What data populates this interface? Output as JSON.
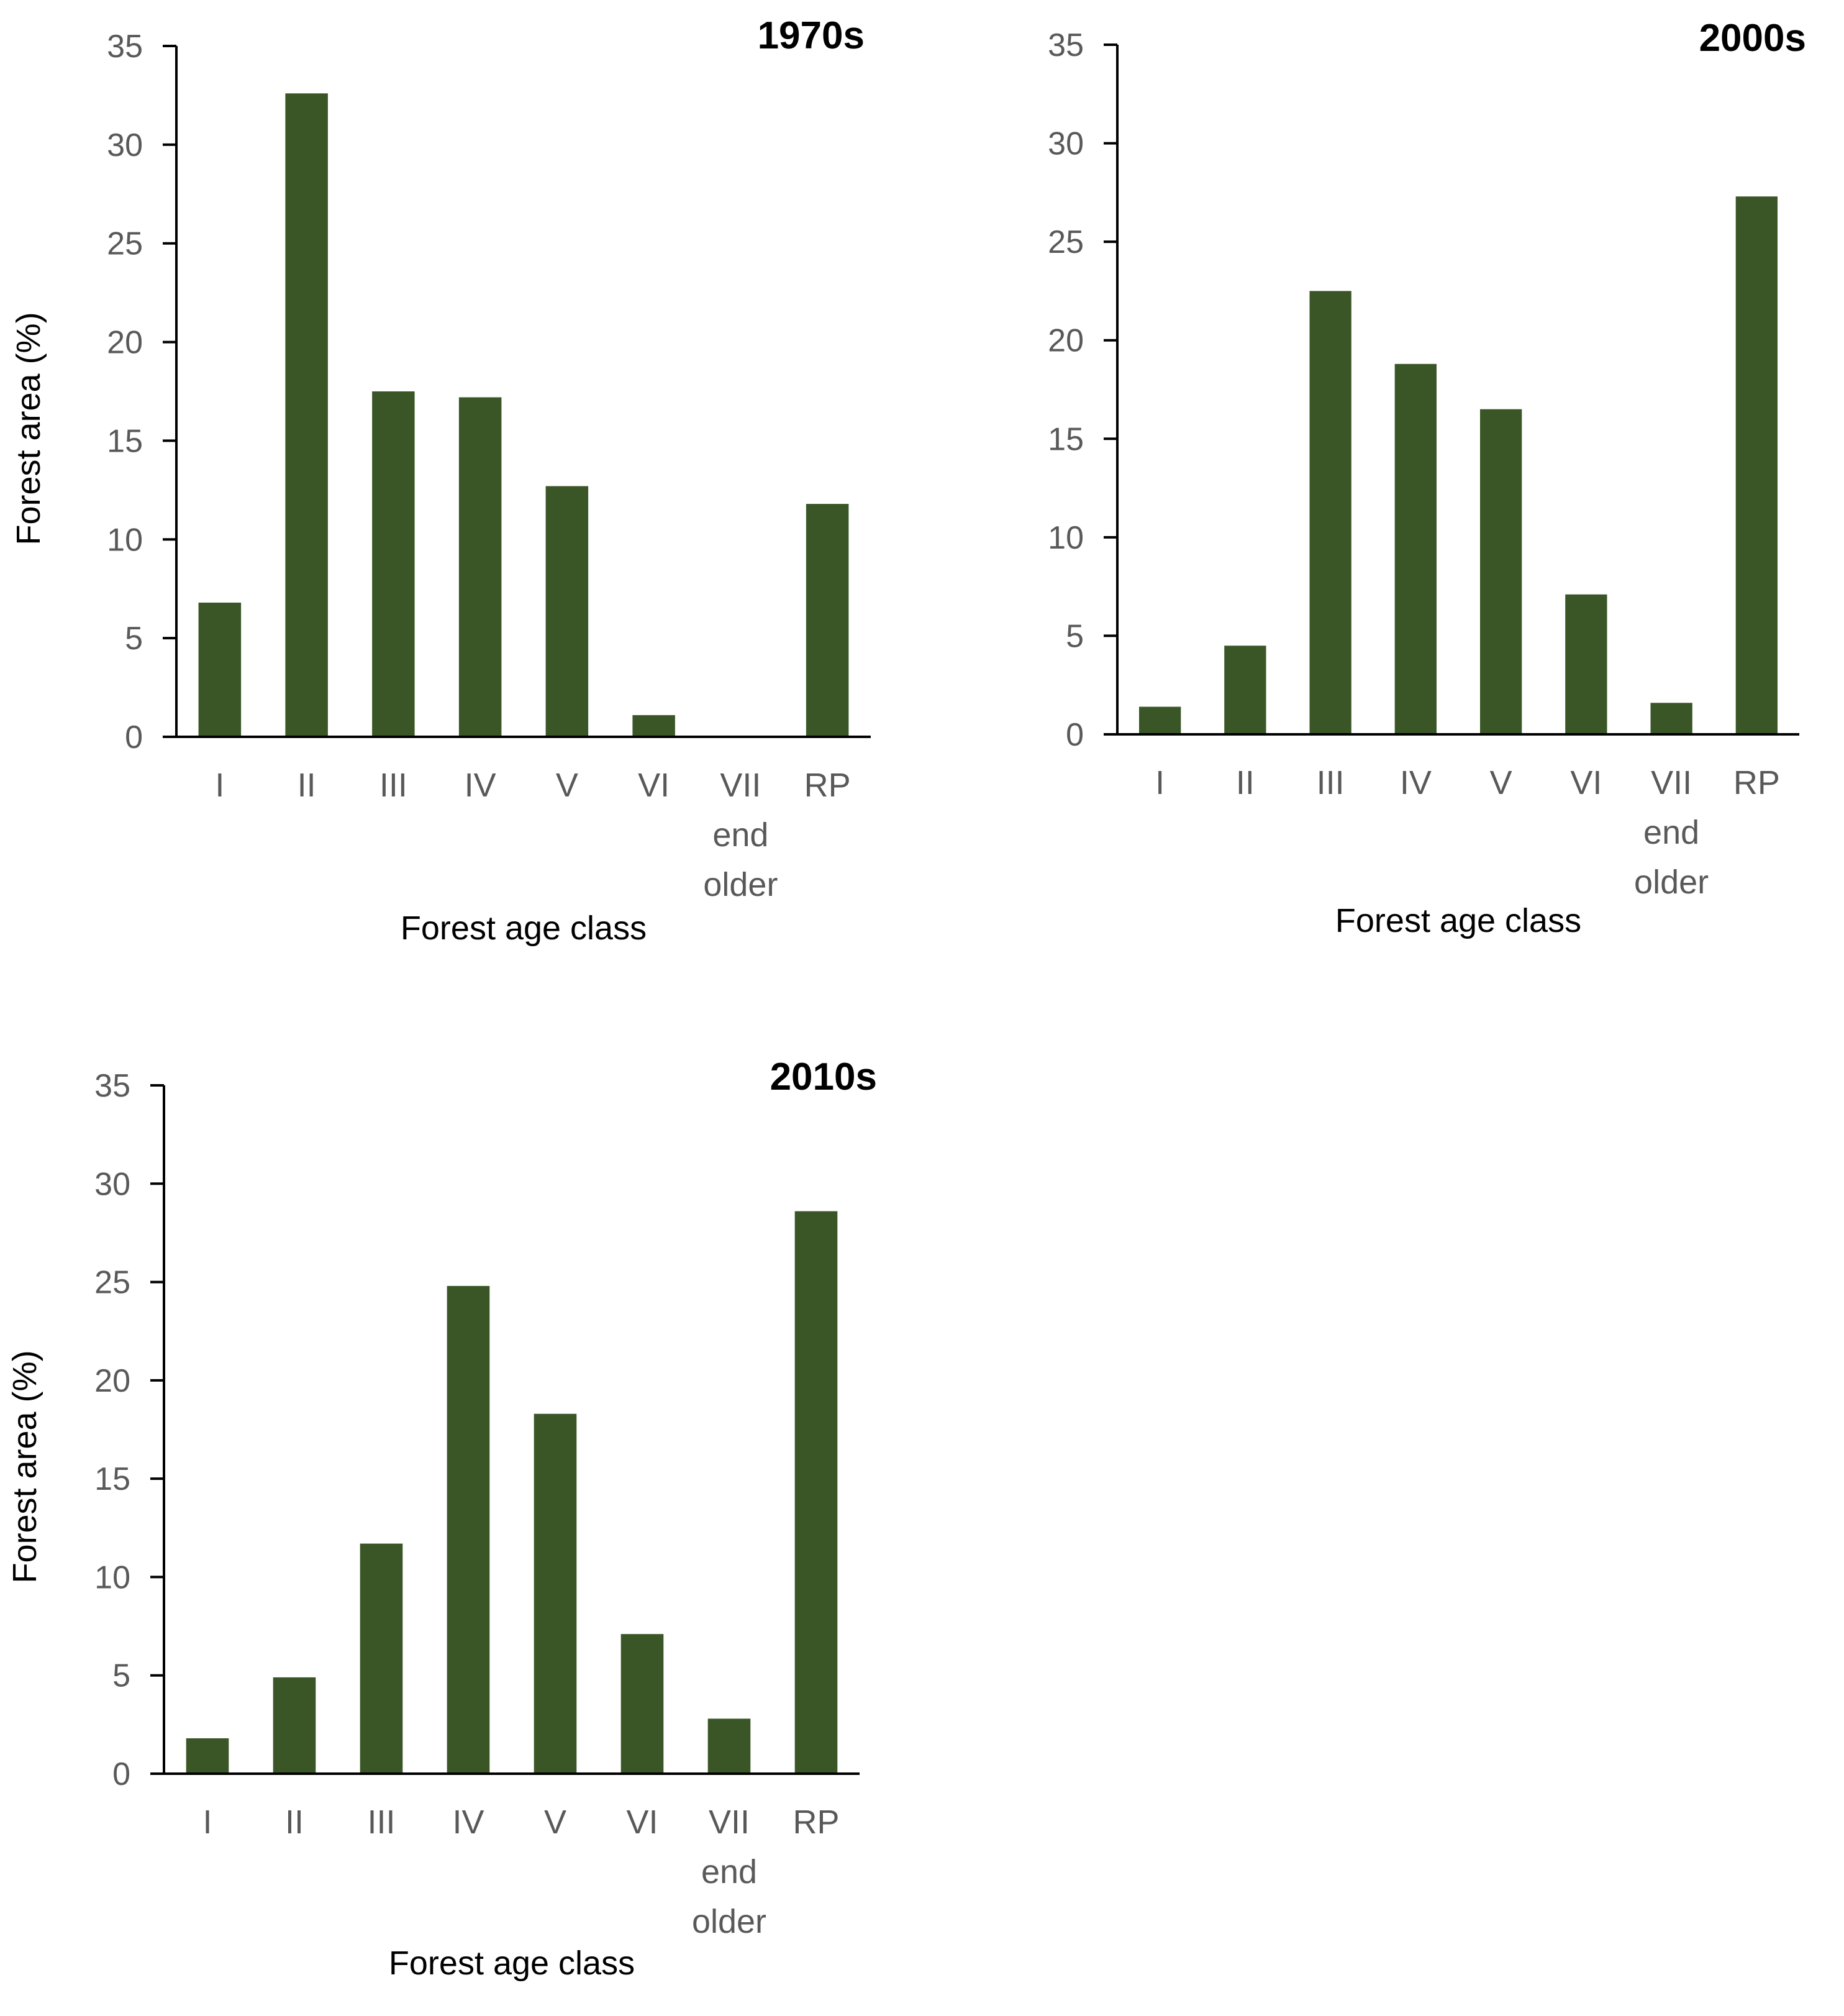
{
  "chart_data": [
    {
      "type": "bar",
      "title": "1970s",
      "xlabel": "Forest age class",
      "ylabel": "Forest area (%)",
      "ylim": [
        0,
        35
      ],
      "yticks": [
        0,
        5,
        10,
        15,
        20,
        25,
        30,
        35
      ],
      "categories": [
        "I",
        "II",
        "III",
        "IV",
        "V",
        "VI",
        "VII end older",
        "RP"
      ],
      "category_lines": [
        [
          "I"
        ],
        [
          "II"
        ],
        [
          "III"
        ],
        [
          "IV"
        ],
        [
          "V"
        ],
        [
          "VI"
        ],
        [
          "VII",
          "end",
          "older"
        ],
        [
          "RP"
        ]
      ],
      "values": [
        6.8,
        32.6,
        17.5,
        17.2,
        12.7,
        1.1,
        0,
        11.8
      ],
      "grid": false,
      "legend": "none"
    },
    {
      "type": "bar",
      "title": "2000s",
      "xlabel": "Forest age class",
      "ylabel": "",
      "ylim": [
        0,
        35
      ],
      "yticks": [
        0,
        5,
        10,
        15,
        20,
        25,
        30,
        35
      ],
      "categories": [
        "I",
        "II",
        "III",
        "IV",
        "V",
        "VI",
        "VII end older",
        "RP"
      ],
      "category_lines": [
        [
          "I"
        ],
        [
          "II"
        ],
        [
          "III"
        ],
        [
          "IV"
        ],
        [
          "V"
        ],
        [
          "VI"
        ],
        [
          "VII",
          "end",
          "older"
        ],
        [
          "RP"
        ]
      ],
      "values": [
        1.4,
        4.5,
        22.5,
        18.8,
        16.5,
        7.1,
        1.6,
        27.3
      ],
      "grid": false,
      "legend": "none"
    },
    {
      "type": "bar",
      "title": "2010s",
      "xlabel": "Forest age class",
      "ylabel": "Forest area (%)",
      "ylim": [
        0,
        35
      ],
      "yticks": [
        0,
        5,
        10,
        15,
        20,
        25,
        30,
        35
      ],
      "categories": [
        "I",
        "II",
        "III",
        "IV",
        "V",
        "VI",
        "VII end older",
        "RP"
      ],
      "category_lines": [
        [
          "I"
        ],
        [
          "II"
        ],
        [
          "III"
        ],
        [
          "IV"
        ],
        [
          "V"
        ],
        [
          "VI"
        ],
        [
          "VII",
          "end",
          "older"
        ],
        [
          "RP"
        ]
      ],
      "values": [
        1.8,
        4.9,
        11.7,
        24.8,
        18.3,
        7.1,
        2.8,
        28.6
      ],
      "grid": false,
      "legend": "none"
    }
  ],
  "colors": {
    "bar": "#3b5626",
    "axis": "#000000",
    "tick_label": "#595959",
    "axis_title": "#000000"
  }
}
